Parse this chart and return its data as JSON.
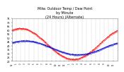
{
  "title": "Milw. Outdoor Temp / Dew Point\nby Minute\n(24 Hours) (Alternate)",
  "title_fontsize": 3.5,
  "temp_color": "#ff0000",
  "dew_color": "#0000cc",
  "bg_color": "#ffffff",
  "ylim": [
    20,
    75
  ],
  "xlim": [
    0,
    1440
  ],
  "ytick_vals": [
    20,
    25,
    30,
    35,
    40,
    45,
    50,
    55,
    60,
    65,
    70,
    75
  ],
  "xtick_vals": [
    0,
    60,
    120,
    180,
    240,
    300,
    360,
    420,
    480,
    540,
    600,
    660,
    720,
    780,
    840,
    900,
    960,
    1020,
    1080,
    1140,
    1200,
    1260,
    1320,
    1380,
    1440
  ],
  "xtick_labels": [
    "12",
    "1",
    "2",
    "3",
    "4",
    "5",
    "6",
    "7",
    "8",
    "9",
    "10",
    "11",
    "12",
    "1",
    "2",
    "3",
    "4",
    "5",
    "6",
    "7",
    "8",
    "9",
    "10",
    "11",
    "12"
  ],
  "grid_color": "#aaaaaa"
}
